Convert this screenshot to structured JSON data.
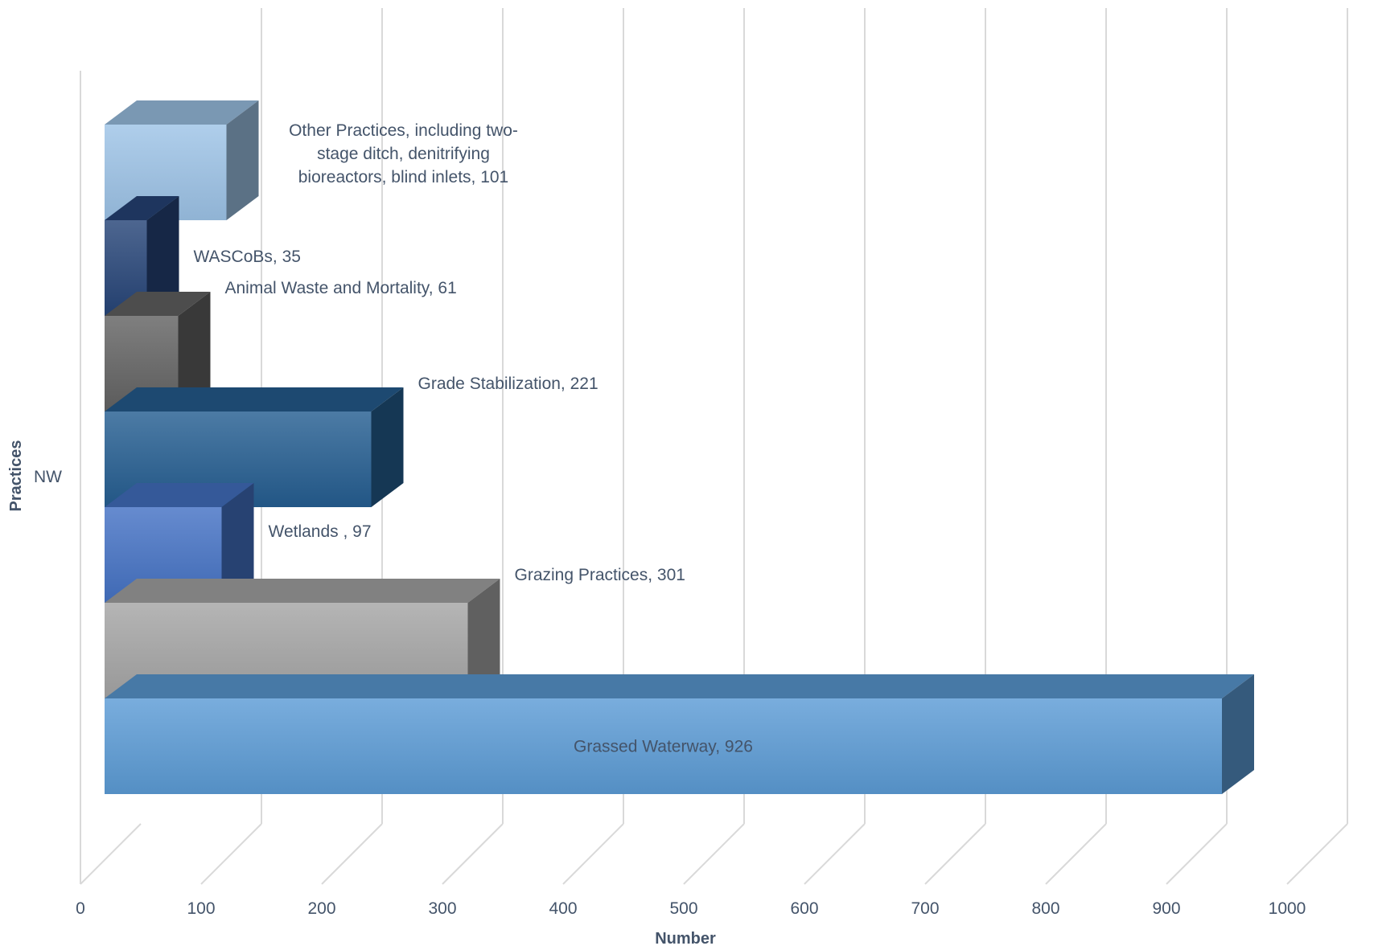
{
  "chart_data": {
    "type": "bar",
    "orientation": "horizontal",
    "style": "3d",
    "categories": [
      "NW"
    ],
    "series": [
      {
        "name": "Grassed Waterway",
        "values": [
          926
        ],
        "color": "#5b9bd5"
      },
      {
        "name": "Grazing Practices",
        "values": [
          301
        ],
        "color": "#a5a5a5"
      },
      {
        "name": "Wetlands ",
        "values": [
          97
        ],
        "color": "#4472c4"
      },
      {
        "name": "Grade Stabilization",
        "values": [
          221
        ],
        "color": "#255e91"
      },
      {
        "name": "Animal Waste and Mortality",
        "values": [
          61
        ],
        "color": "#636363"
      },
      {
        "name": "WASCoBs",
        "values": [
          35
        ],
        "color": "#264478"
      },
      {
        "name": "Other Practices, including two-stage ditch, denitrifying bioreactors, blind inlets",
        "values": [
          101
        ],
        "color": "#9dc3e6"
      }
    ],
    "data_labels": [
      [
        "Grassed Waterway, 926"
      ],
      [
        "Grazing Practices, 301"
      ],
      [
        "Wetlands , 97"
      ],
      [
        "Grade Stabilization, 221"
      ],
      [
        "Animal Waste and Mortality, 61"
      ],
      [
        "WASCoBs, 35"
      ],
      [
        "Other Practices, including two-",
        "stage ditch, denitrifying",
        "bioreactors, blind inlets, 101"
      ]
    ],
    "x_ticks": [
      "0",
      "100",
      "200",
      "300",
      "400",
      "500",
      "600",
      "700",
      "800",
      "900",
      "1000"
    ],
    "xlim": [
      0,
      1000
    ],
    "xlabel": "Number",
    "ylabel": "Practices",
    "grid": true,
    "legend": "none"
  }
}
